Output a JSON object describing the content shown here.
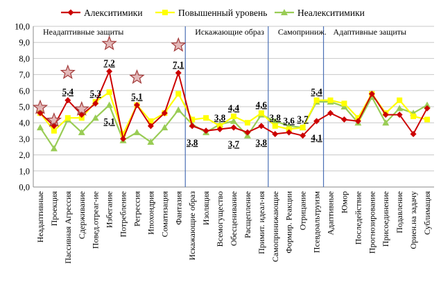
{
  "chart_data": {
    "type": "line",
    "categories": [
      "Неадаптивные",
      "Проекция",
      "Пассивная Агрессия",
      "Сдерживание",
      "Повед.отреаг-ие",
      "Избегание",
      "Потребление",
      "Регрессия",
      "Ипохондрия",
      "Соматизация",
      "Фантазия",
      "Искажающие образ",
      "Изоляция",
      "Всемогущество",
      "Обесценивание",
      "Расщепление",
      "Примит. идеал-ия",
      "Самопринижающие",
      "Формир. Реакции",
      "Отрицание",
      "Псевдоальтруизм",
      "Адаптивные",
      "Юмор",
      "Последействие",
      "Прогнозирование",
      "Присоединение",
      "Подавление",
      "Ориен.на задачу",
      "Сублимация"
    ],
    "series": [
      {
        "name": "Алекситимики",
        "color": "#cc0000",
        "values": [
          4.6,
          3.8,
          5.4,
          4.5,
          5.2,
          7.2,
          3.0,
          5.1,
          3.8,
          4.6,
          7.1,
          3.8,
          3.5,
          3.6,
          3.7,
          3.4,
          3.8,
          3.3,
          3.4,
          3.2,
          4.1,
          4.6,
          4.2,
          4.1,
          5.8,
          4.5,
          4.5,
          3.3,
          4.9
        ]
      },
      {
        "name": "Повышенный уровень",
        "color": "#ffff00",
        "values": [
          4.6,
          3.5,
          4.3,
          4.3,
          5.3,
          5.9,
          3.3,
          5.1,
          4.1,
          4.6,
          5.8,
          4.2,
          4.3,
          3.8,
          4.4,
          4.0,
          4.6,
          3.8,
          3.6,
          3.7,
          5.4,
          5.4,
          5.2,
          4.3,
          5.8,
          4.6,
          5.4,
          4.4,
          4.2
        ]
      },
      {
        "name": "Неалекситимики",
        "color": "#99cc55",
        "values": [
          3.7,
          2.4,
          4.2,
          3.4,
          4.3,
          5.1,
          2.9,
          3.4,
          2.8,
          3.7,
          4.8,
          3.9,
          3.4,
          3.9,
          4.1,
          3.2,
          4.5,
          4.1,
          3.8,
          3.7,
          5.3,
          5.3,
          5.0,
          4.0,
          5.6,
          4.0,
          4.9,
          4.6,
          5.1
        ]
      }
    ],
    "yticks": [
      "0,0",
      "1,0",
      "2,0",
      "3,0",
      "4,0",
      "5,0",
      "6,0",
      "7,0",
      "8,0",
      "9,0",
      "10,0"
    ],
    "ylim": [
      0,
      10
    ],
    "grid": "horizontal",
    "legend": "top",
    "groups": [
      {
        "label": "Неадаптивные защиты",
        "start_index": 0
      },
      {
        "label": "Искажающие образ",
        "start_index": 11
      },
      {
        "label": "Самоприниж.",
        "start_index": 17
      },
      {
        "label": "Адаптивные защиты",
        "start_index": 21
      }
    ],
    "dividers_after_index": [
      10,
      16,
      20
    ],
    "stars_at_indices": [
      0,
      1,
      2,
      3,
      5,
      7,
      10
    ],
    "annotations": [
      {
        "text": "5,4",
        "index": 2,
        "value": 5.4,
        "pos": "above"
      },
      {
        "text": "5,3",
        "index": 4,
        "value": 5.3,
        "pos": "above"
      },
      {
        "text": "7,2",
        "index": 5,
        "value": 7.2,
        "pos": "above"
      },
      {
        "text": "5,1",
        "index": 5,
        "value": 5.1,
        "pos": "below"
      },
      {
        "text": "5,1",
        "index": 7,
        "value": 5.1,
        "pos": "above"
      },
      {
        "text": "7,1",
        "index": 10,
        "value": 7.1,
        "pos": "above"
      },
      {
        "text": "3,8",
        "index": 11,
        "value": 3.8,
        "pos": "below"
      },
      {
        "text": "3,8",
        "index": 13,
        "value": 3.8,
        "pos": "above"
      },
      {
        "text": "4,4",
        "index": 14,
        "value": 4.4,
        "pos": "above"
      },
      {
        "text": "3,7",
        "index": 14,
        "value": 3.7,
        "pos": "below"
      },
      {
        "text": "4,6",
        "index": 16,
        "value": 4.6,
        "pos": "above"
      },
      {
        "text": "3,8",
        "index": 16,
        "value": 3.8,
        "pos": "below"
      },
      {
        "text": "3,8",
        "index": 17,
        "value": 3.8,
        "pos": "above"
      },
      {
        "text": "3,6",
        "index": 18,
        "value": 3.6,
        "pos": "above"
      },
      {
        "text": "3,7",
        "index": 19,
        "value": 3.7,
        "pos": "above"
      },
      {
        "text": "5,4",
        "index": 20,
        "value": 5.4,
        "pos": "above"
      },
      {
        "text": "4,1",
        "index": 20,
        "value": 4.1,
        "pos": "below"
      }
    ]
  }
}
